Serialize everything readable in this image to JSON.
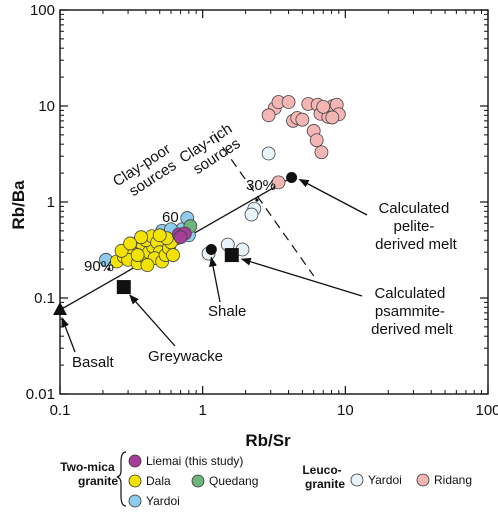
{
  "chart_data": {
    "type": "scatter",
    "xlabel": "Rb/Sr",
    "ylabel": "Rb/Ba",
    "xscale": "log",
    "yscale": "log",
    "xlim": [
      0.1,
      100
    ],
    "ylim": [
      0.01,
      100
    ],
    "x_ticks": [
      "0.1",
      "1",
      "10",
      "100"
    ],
    "y_ticks": [
      "0.01",
      "0.1",
      "1",
      "10",
      "100"
    ],
    "series": [
      {
        "name": "Liemai (this study)",
        "group": "Two-mica granite",
        "color": "#a63d98",
        "points": [
          [
            0.68,
            0.46
          ],
          [
            0.75,
            0.47
          ],
          [
            0.7,
            0.43
          ]
        ]
      },
      {
        "name": "Dala",
        "group": "Two-mica granite",
        "color": "#f2e400",
        "points": [
          [
            0.25,
            0.24
          ],
          [
            0.28,
            0.27
          ],
          [
            0.3,
            0.3
          ],
          [
            0.32,
            0.33
          ],
          [
            0.34,
            0.36
          ],
          [
            0.36,
            0.39
          ],
          [
            0.38,
            0.34
          ],
          [
            0.33,
            0.29
          ],
          [
            0.3,
            0.25
          ],
          [
            0.35,
            0.23
          ],
          [
            0.4,
            0.26
          ],
          [
            0.42,
            0.3
          ],
          [
            0.45,
            0.34
          ],
          [
            0.4,
            0.4
          ],
          [
            0.44,
            0.44
          ],
          [
            0.37,
            0.43
          ],
          [
            0.48,
            0.38
          ],
          [
            0.5,
            0.3
          ],
          [
            0.46,
            0.26
          ],
          [
            0.52,
            0.24
          ],
          [
            0.55,
            0.28
          ],
          [
            0.58,
            0.33
          ],
          [
            0.6,
            0.38
          ],
          [
            0.56,
            0.42
          ],
          [
            0.62,
            0.28
          ],
          [
            0.27,
            0.31
          ],
          [
            0.31,
            0.37
          ],
          [
            0.5,
            0.45
          ],
          [
            0.41,
            0.22
          ],
          [
            0.35,
            0.28
          ]
        ]
      },
      {
        "name": "Quedang",
        "group": "Two-mica granite",
        "color": "#6db57a",
        "points": [
          [
            0.82,
            0.56
          ]
        ]
      },
      {
        "name": "Yardoi",
        "group": "Two-mica granite",
        "color": "#8fcbec",
        "points": [
          [
            0.21,
            0.25
          ],
          [
            0.52,
            0.5
          ],
          [
            0.55,
            0.44
          ],
          [
            0.63,
            0.46
          ],
          [
            0.66,
            0.42
          ],
          [
            0.72,
            0.52
          ],
          [
            0.78,
            0.68
          ],
          [
            0.8,
            0.45
          ],
          [
            0.6,
            0.52
          ]
        ]
      },
      {
        "name": "Yardoi",
        "group": "Leucogranite",
        "color": "#e8f4fa",
        "points": [
          [
            2.9,
            3.2
          ],
          [
            2.3,
            0.85
          ],
          [
            2.2,
            0.74
          ],
          [
            1.1,
            0.29
          ],
          [
            1.9,
            0.32
          ],
          [
            1.5,
            0.36
          ]
        ]
      },
      {
        "name": "Ridang",
        "group": "Leucogranite",
        "color": "#f4b5b5",
        "points": [
          [
            3.2,
            9.5
          ],
          [
            3.4,
            11.0
          ],
          [
            2.9,
            8.0
          ],
          [
            4.3,
            7.0
          ],
          [
            4.6,
            7.5
          ],
          [
            5.0,
            7.2
          ],
          [
            5.5,
            10.5
          ],
          [
            6.4,
            10.3
          ],
          [
            6.7,
            8.3
          ],
          [
            7.6,
            7.7
          ],
          [
            8.2,
            10.0
          ],
          [
            8.7,
            10.3
          ],
          [
            9.0,
            8.2
          ],
          [
            8.1,
            7.6
          ],
          [
            7.0,
            9.8
          ],
          [
            6.0,
            5.5
          ],
          [
            6.8,
            3.3
          ],
          [
            6.3,
            4.4
          ],
          [
            3.4,
            1.6
          ],
          [
            4.0,
            11.0
          ]
        ]
      }
    ],
    "references": [
      {
        "name": "Basalt",
        "marker": "triangle",
        "x": 0.1,
        "y": 0.075
      },
      {
        "name": "Greywacke",
        "marker": "square",
        "x": 0.28,
        "y": 0.13
      },
      {
        "name": "Shale",
        "marker": "square",
        "x": 1.6,
        "y": 0.28
      },
      {
        "name": "Calculated psammite-derived melt",
        "marker": "dot",
        "x": 1.15,
        "y": 0.32
      },
      {
        "name": "Calculated pelite-derived melt",
        "marker": "dot",
        "x": 4.2,
        "y": 1.8
      }
    ],
    "mixing_line": {
      "x": [
        0.1,
        4.2
      ],
      "y": [
        0.075,
        1.8
      ],
      "labels": [
        "90%",
        "60",
        "30%"
      ],
      "label_at": [
        [
          0.22,
          0.2
        ],
        [
          0.55,
          0.55
        ],
        [
          2.4,
          1.05
        ]
      ]
    },
    "divider": {
      "x": [
        1.2,
        6.0
      ],
      "y": [
        5.0,
        0.17
      ]
    },
    "region_labels": [
      "Clay-poor sources",
      "Clay-rich sources"
    ],
    "legend": {
      "group_two_mica": [
        "Two-mica",
        "granite"
      ],
      "group_leuco": [
        "Leuco-",
        "granite"
      ],
      "items": [
        "Liemai (this study)",
        "Dala",
        "Quedang",
        "Yardoi",
        "Yardoi",
        "Ridang"
      ],
      "placement": "bottom"
    }
  }
}
